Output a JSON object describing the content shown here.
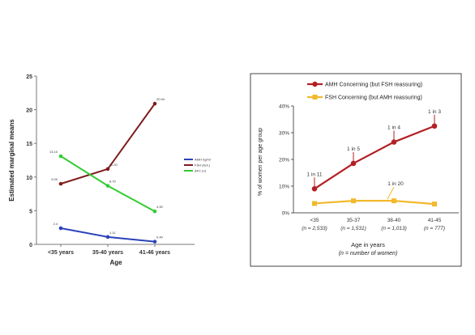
{
  "chart_data": [
    {
      "type": "line",
      "title": "",
      "xlabel": "Age",
      "ylabel": "Estimated marginal means",
      "categories": [
        "<35 years",
        "35-40 years",
        "41-46 years"
      ],
      "ylim": [
        0,
        25
      ],
      "yticks": [
        0,
        5,
        10,
        15,
        20,
        25
      ],
      "grid": false,
      "legend_position": "right",
      "series": [
        {
          "name": "AMH ng/ml",
          "color": "#2b43b8",
          "values": [
            2.4,
            1.1,
            0.4
          ],
          "labels": [
            "2.4",
            "1.11",
            "0.40"
          ]
        },
        {
          "name": "FSH (IU/L)",
          "color": "#7f1d1d",
          "values": [
            9.0,
            11.2,
            20.9
          ],
          "labels": [
            "9.00",
            "11.20",
            "20.94"
          ]
        },
        {
          "name": "AFC (n)",
          "color": "#33cc33",
          "values": [
            13.1,
            8.7,
            4.9
          ],
          "labels": [
            "13.10",
            "8.70",
            "4.90"
          ]
        }
      ]
    },
    {
      "type": "line",
      "title": "",
      "xlabel": "Age in years",
      "xlabel_sub": "(n = number of women)",
      "ylabel": "% of women per age group",
      "categories": [
        "<35",
        "35-37",
        "38-40",
        "41-45"
      ],
      "category_counts": [
        "(n = 2,533)",
        "(n = 1,531)",
        "(n = 1,013)",
        "(n = 777)"
      ],
      "ylim": [
        0,
        40
      ],
      "yticks": [
        "0%",
        "10%",
        "20%",
        "30%",
        "40%"
      ],
      "ytick_values": [
        0,
        10,
        20,
        30,
        40
      ],
      "grid": false,
      "legend_position": "top",
      "series": [
        {
          "name": "AMH Concerning (but FSH reassuring)",
          "color": "#b32025",
          "values": [
            9,
            18.5,
            26.5,
            32.5
          ]
        },
        {
          "name": "FSH Concerning (but AMH reassuring)",
          "color": "#f2b92d",
          "values": [
            3.5,
            4.5,
            4.5,
            3.3
          ]
        }
      ],
      "annotations": [
        {
          "text": "1 in 11",
          "series": 0,
          "index": 0
        },
        {
          "text": "1 in 5",
          "series": 0,
          "index": 1
        },
        {
          "text": "1 in 4",
          "series": 0,
          "index": 2
        },
        {
          "text": "1 in 3",
          "series": 0,
          "index": 3
        },
        {
          "text": "1 in 20",
          "series": 1,
          "index": 2
        }
      ]
    }
  ]
}
